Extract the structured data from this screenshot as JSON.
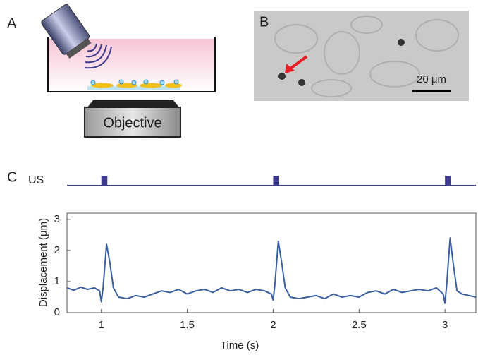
{
  "panel_a": {
    "label": "A",
    "objective": "Objective"
  },
  "panel_b": {
    "label": "B",
    "scale_bar": "20 μm"
  },
  "chart_data": {
    "type": "line",
    "panel_label": "C",
    "us_trace": {
      "label": "US",
      "pulse_starts": [
        1,
        2,
        3
      ],
      "pulse_width": 0.035,
      "color": "#3b3a8c"
    },
    "x_label": "Time (s)",
    "y_label": "Displacement (μm)",
    "xlim": [
      0.8,
      3.18
    ],
    "ylim": [
      0,
      3.2
    ],
    "xticks": [
      1,
      1.5,
      2,
      2.5,
      3
    ],
    "yticks": [
      0,
      1,
      2,
      3
    ],
    "x": [
      0.8,
      0.84,
      0.88,
      0.92,
      0.96,
      0.99,
      1.0,
      1.01,
      1.03,
      1.05,
      1.07,
      1.1,
      1.15,
      1.2,
      1.25,
      1.3,
      1.35,
      1.4,
      1.45,
      1.5,
      1.55,
      1.6,
      1.65,
      1.7,
      1.75,
      1.8,
      1.85,
      1.9,
      1.95,
      1.99,
      2.0,
      2.01,
      2.03,
      2.05,
      2.07,
      2.1,
      2.15,
      2.2,
      2.25,
      2.3,
      2.35,
      2.4,
      2.45,
      2.5,
      2.55,
      2.6,
      2.65,
      2.7,
      2.75,
      2.8,
      2.85,
      2.9,
      2.95,
      2.99,
      3.0,
      3.01,
      3.03,
      3.05,
      3.07,
      3.1,
      3.14,
      3.18
    ],
    "series": [
      {
        "color": "#3a5fa0",
        "values": [
          0.8,
          0.72,
          0.82,
          0.75,
          0.8,
          0.7,
          0.35,
          0.8,
          2.2,
          1.6,
          0.8,
          0.5,
          0.45,
          0.55,
          0.5,
          0.6,
          0.7,
          0.65,
          0.75,
          0.6,
          0.7,
          0.75,
          0.65,
          0.8,
          0.7,
          0.75,
          0.65,
          0.75,
          0.7,
          0.6,
          0.4,
          0.9,
          2.3,
          1.6,
          0.8,
          0.5,
          0.45,
          0.5,
          0.55,
          0.45,
          0.6,
          0.5,
          0.55,
          0.5,
          0.65,
          0.7,
          0.6,
          0.75,
          0.65,
          0.7,
          0.75,
          0.7,
          0.8,
          0.6,
          0.3,
          0.9,
          2.4,
          1.5,
          0.7,
          0.6,
          0.55,
          0.5
        ]
      }
    ]
  }
}
